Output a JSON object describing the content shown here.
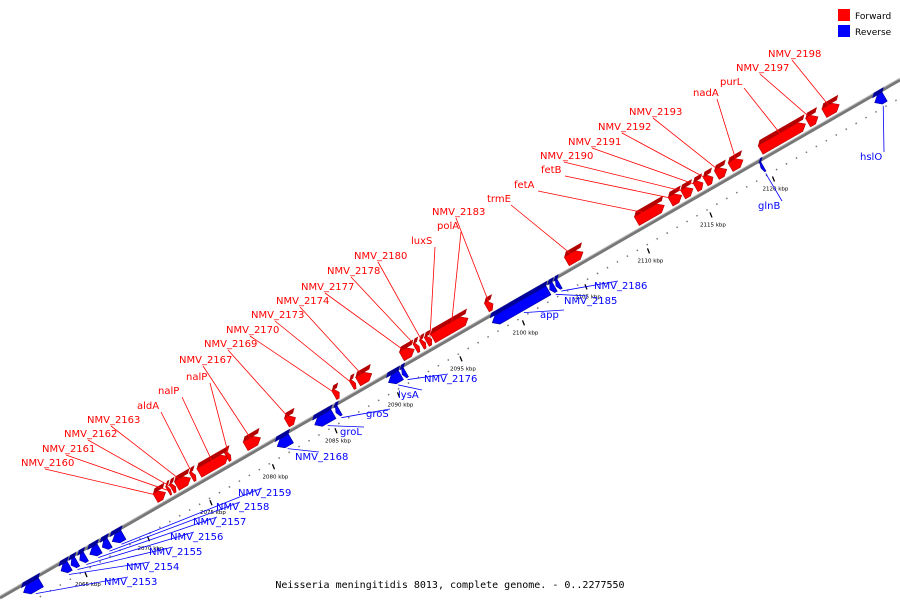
{
  "legend": {
    "forward": {
      "label": "Forward",
      "color": "#ff0000"
    },
    "reverse": {
      "label": "Reverse",
      "color": "#0000ff"
    }
  },
  "caption": "Neisseria meningitidis 8013, complete genome. - 0..2277550",
  "scale_ticks": [
    "2065 kbp",
    "2070 kbp",
    "2075 kbp",
    "2080 kbp",
    "2085 kbp",
    "2090 kbp",
    "2095 kbp",
    "2100 kbp",
    "2105 kbp",
    "2110 kbp",
    "2115 kbp",
    "2120 kbp"
  ],
  "genes": [
    {
      "name": "NMV_2153",
      "strand": "reverse",
      "start_kbp": 2060.6,
      "end_kbp": 2062.0
    },
    {
      "name": "NMV_2154",
      "strand": "reverse",
      "start_kbp": 2063.6,
      "end_kbp": 2064.3
    },
    {
      "name": "NMV_2155",
      "strand": "reverse",
      "start_kbp": 2064.4,
      "end_kbp": 2064.9
    },
    {
      "name": "NMV_2156",
      "strand": "reverse",
      "start_kbp": 2065.1,
      "end_kbp": 2065.6
    },
    {
      "name": "NMV_2157",
      "strand": "reverse",
      "start_kbp": 2065.9,
      "end_kbp": 2066.7
    },
    {
      "name": "NMV_2158",
      "strand": "reverse",
      "start_kbp": 2066.9,
      "end_kbp": 2067.5
    },
    {
      "name": "NMV_2159",
      "strand": "reverse",
      "start_kbp": 2067.7,
      "end_kbp": 2068.6
    },
    {
      "name": "NMV_2160",
      "strand": "forward",
      "start_kbp": 2071.8,
      "end_kbp": 2072.6
    },
    {
      "name": "NMV_2161",
      "strand": "forward",
      "start_kbp": 2072.8,
      "end_kbp": 2073.0
    },
    {
      "name": "NMV_2162",
      "strand": "forward",
      "start_kbp": 2073.1,
      "end_kbp": 2073.4
    },
    {
      "name": "NMV_2163",
      "strand": "forward",
      "start_kbp": 2073.5,
      "end_kbp": 2074.6
    },
    {
      "name": "aldA",
      "strand": "forward",
      "start_kbp": 2074.7,
      "end_kbp": 2075.0
    },
    {
      "name": "nalP",
      "strand": "forward",
      "start_kbp": 2075.3,
      "end_kbp": 2077.6
    },
    {
      "name": "nalP",
      "strand": "forward",
      "start_kbp": 2077.5,
      "end_kbp": 2077.8
    },
    {
      "name": "NMV_2167",
      "strand": "forward",
      "start_kbp": 2079.0,
      "end_kbp": 2080.2
    },
    {
      "name": "NMV_2168",
      "strand": "reverse",
      "start_kbp": 2080.9,
      "end_kbp": 2082.0
    },
    {
      "name": "NMV_2169",
      "strand": "forward",
      "start_kbp": 2082.3,
      "end_kbp": 2083.0
    },
    {
      "name": "groL",
      "strand": "reverse",
      "start_kbp": 2083.9,
      "end_kbp": 2085.4
    },
    {
      "name": "groS",
      "strand": "reverse",
      "start_kbp": 2085.6,
      "end_kbp": 2085.9
    },
    {
      "name": "NMV_2170",
      "strand": "forward",
      "start_kbp": 2086.1,
      "end_kbp": 2086.5
    },
    {
      "name": "NMV_2173",
      "strand": "forward",
      "start_kbp": 2087.5,
      "end_kbp": 2087.8
    },
    {
      "name": "NMV_2174",
      "strand": "forward",
      "start_kbp": 2088.0,
      "end_kbp": 2089.1
    },
    {
      "name": "lysA",
      "strand": "reverse",
      "start_kbp": 2089.8,
      "end_kbp": 2090.8
    },
    {
      "name": "NMV_2176",
      "strand": "reverse",
      "start_kbp": 2090.9,
      "end_kbp": 2091.2
    },
    {
      "name": "NMV_2177",
      "strand": "forward",
      "start_kbp": 2091.5,
      "end_kbp": 2092.5
    },
    {
      "name": "NMV_2178",
      "strand": "forward",
      "start_kbp": 2092.6,
      "end_kbp": 2092.9
    },
    {
      "name": "NMV_2180",
      "strand": "forward",
      "start_kbp": 2093.1,
      "end_kbp": 2093.4
    },
    {
      "name": "luxS",
      "strand": "forward",
      "start_kbp": 2093.5,
      "end_kbp": 2093.9
    },
    {
      "name": "polA",
      "strand": "forward",
      "start_kbp": 2094.0,
      "end_kbp": 2096.8
    },
    {
      "name": "app",
      "strand": "reverse",
      "start_kbp": 2098.1,
      "end_kbp": 2102.6
    },
    {
      "name": "NMV_2183",
      "strand": "forward",
      "start_kbp": 2098.3,
      "end_kbp": 2098.8
    },
    {
      "name": "NMV_2185",
      "strand": "reverse",
      "start_kbp": 2102.7,
      "end_kbp": 2103.1
    },
    {
      "name": "NMV_2186",
      "strand": "reverse",
      "start_kbp": 2103.2,
      "end_kbp": 2103.5
    },
    {
      "name": "trmE",
      "strand": "forward",
      "start_kbp": 2104.7,
      "end_kbp": 2106.0
    },
    {
      "name": "fetA",
      "strand": "forward",
      "start_kbp": 2110.3,
      "end_kbp": 2112.5
    },
    {
      "name": "fetB",
      "strand": "forward",
      "start_kbp": 2113.0,
      "end_kbp": 2113.9
    },
    {
      "name": "NMV_2190",
      "strand": "forward",
      "start_kbp": 2114.0,
      "end_kbp": 2114.8
    },
    {
      "name": "NMV_2191",
      "strand": "forward",
      "start_kbp": 2115.0,
      "end_kbp": 2115.6
    },
    {
      "name": "NMV_2192",
      "strand": "forward",
      "start_kbp": 2115.8,
      "end_kbp": 2116.4
    },
    {
      "name": "NMV_2193",
      "strand": "forward",
      "start_kbp": 2116.7,
      "end_kbp": 2117.5
    },
    {
      "name": "nadA",
      "strand": "forward",
      "start_kbp": 2117.8,
      "end_kbp": 2118.8
    },
    {
      "name": "glnB",
      "strand": "reverse",
      "start_kbp": 2119.6,
      "end_kbp": 2119.8
    },
    {
      "name": "purL",
      "strand": "forward",
      "start_kbp": 2120.2,
      "end_kbp": 2123.8
    },
    {
      "name": "NMV_2197",
      "strand": "forward",
      "start_kbp": 2124.0,
      "end_kbp": 2124.8
    },
    {
      "name": "NMV_2198",
      "strand": "forward",
      "start_kbp": 2125.3,
      "end_kbp": 2126.5
    },
    {
      "name": "hslO",
      "strand": "reverse",
      "start_kbp": 2128.7,
      "end_kbp": 2129.5
    }
  ]
}
